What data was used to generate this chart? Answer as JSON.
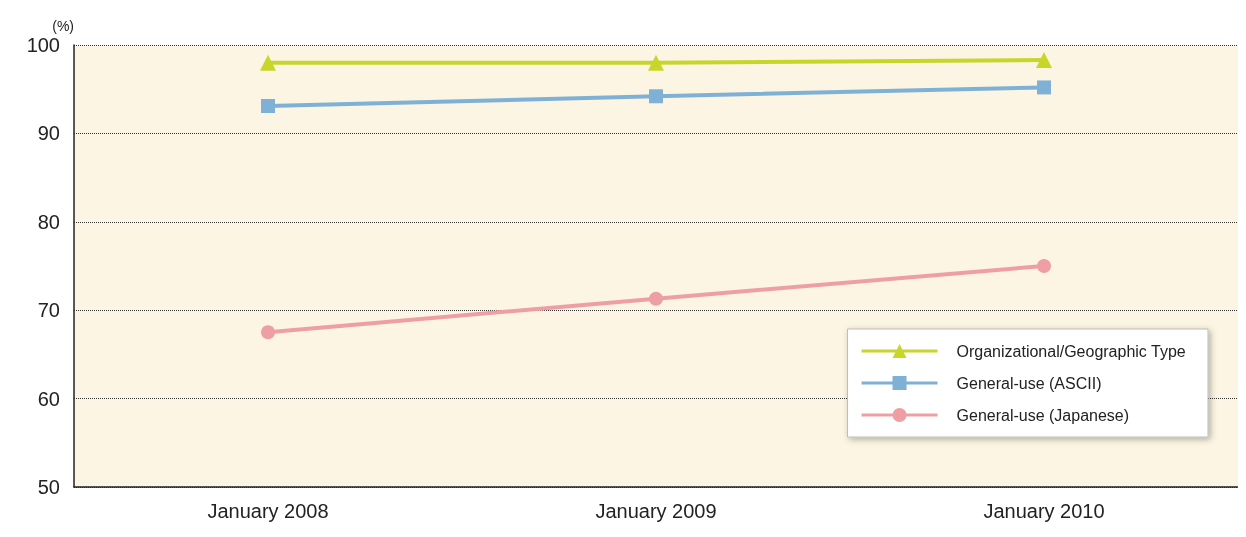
{
  "chart_data": {
    "type": "line",
    "ylabel": "(%)",
    "categories": [
      "January 2008",
      "January 2009",
      "January 2010"
    ],
    "series": [
      {
        "name": "Organizational/Geographic Type",
        "color": "#c8d62b",
        "marker": "triangle",
        "values": [
          98.0,
          98.0,
          98.3
        ]
      },
      {
        "name": "General-use (ASCII)",
        "color": "#7fb1d6",
        "marker": "square",
        "values": [
          93.1,
          94.2,
          95.2
        ]
      },
      {
        "name": "General-use (Japanese)",
        "color": "#ee9fa4",
        "marker": "circle",
        "values": [
          67.5,
          71.3,
          75.0
        ]
      }
    ],
    "ylim": [
      50,
      100
    ],
    "yticks": [
      50,
      60,
      70,
      80,
      90,
      100
    ],
    "grid": "y",
    "legend": "bottom right",
    "line_style": "solid"
  }
}
